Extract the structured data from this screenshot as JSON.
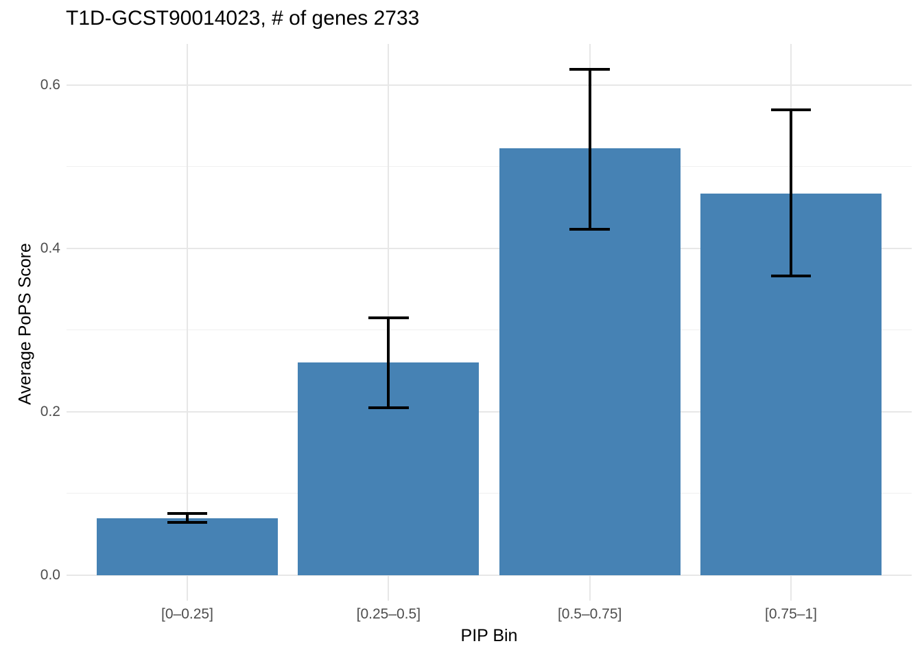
{
  "chart_data": {
    "type": "bar",
    "title": "T1D-GCST90014023, # of genes 2733",
    "xlabel": "PIP Bin",
    "ylabel": "Average PoPS Score",
    "categories": [
      "[0–0.25]",
      "[0.25–0.5]",
      "[0.5–0.75]",
      "[0.75–1]"
    ],
    "series": [
      {
        "name": "Average PoPS Score",
        "values": [
          0.07,
          0.26,
          0.522,
          0.467
        ]
      }
    ],
    "error_bars": {
      "low": [
        0.065,
        0.205,
        0.423,
        0.366
      ],
      "high": [
        0.076,
        0.315,
        0.619,
        0.569
      ]
    },
    "yticks": {
      "values": [
        0.0,
        0.2,
        0.4,
        0.6
      ],
      "labels": [
        "0.0",
        "0.2",
        "0.4",
        "0.6"
      ]
    },
    "yticks_minor": [
      0.1,
      0.3,
      0.5
    ],
    "ylim": [
      -0.031,
      0.65
    ],
    "bar_width_fraction": 0.9,
    "errorbar_cap_fraction": 0.2,
    "grid": true,
    "legend_position": "none",
    "colors": {
      "bar_fill": "#4682B4",
      "errorbar": "#000000",
      "grid_major": "#E7E7E7",
      "grid_minor": "#F0F0F0",
      "tick_label": "#4D4D4D",
      "title": "#000000",
      "background": "#FFFFFF"
    }
  }
}
